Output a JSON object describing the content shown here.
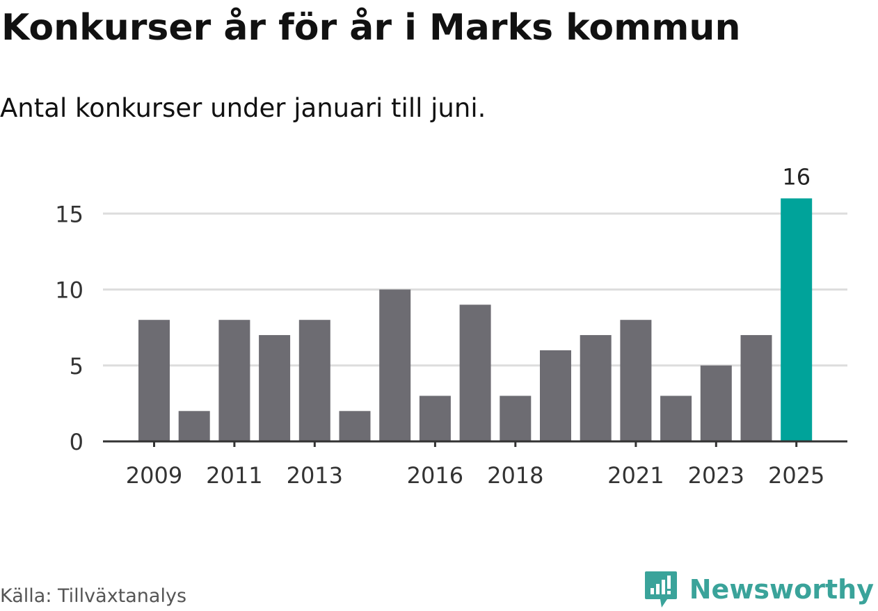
{
  "title": "Konkurser år för år i Marks kommun",
  "subtitle": "Antal konkurser under januari till juni.",
  "source": "Källa: Tillväxtanalys",
  "brand": {
    "name": "Newsworthy",
    "icon": "newsworthy-logo-icon",
    "color": "#3aa39a"
  },
  "chart_data": {
    "type": "bar",
    "x": [
      2009,
      2010,
      2011,
      2012,
      2013,
      2014,
      2015,
      2016,
      2017,
      2018,
      2019,
      2020,
      2021,
      2022,
      2023,
      2024,
      2025
    ],
    "values": [
      8,
      2,
      8,
      7,
      8,
      2,
      10,
      3,
      9,
      3,
      6,
      7,
      8,
      3,
      5,
      7,
      16
    ],
    "x_tick_labels": [
      "2009",
      "2011",
      "2013",
      "2016",
      "2018",
      "2021",
      "2023",
      "2025"
    ],
    "y_ticks": [
      0,
      5,
      10,
      15
    ],
    "ylim": [
      0,
      16
    ],
    "grid": true,
    "bar_color": "#6d6c72",
    "highlight_color": "#00a39a",
    "highlight_index": 16,
    "data_labels": [
      {
        "index": 16,
        "text": "16"
      }
    ]
  }
}
